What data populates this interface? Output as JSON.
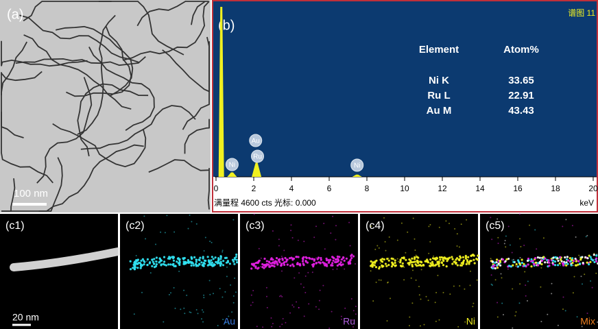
{
  "panel_a": {
    "label": "(a)",
    "scale_bar": "100 nm"
  },
  "panel_b": {
    "label": "(b)",
    "spectrum_title": "谱图 11",
    "table": {
      "header": [
        "Element",
        "Atom%"
      ],
      "rows": [
        [
          "Ni K",
          "33.65"
        ],
        [
          "Ru L",
          "22.91"
        ],
        [
          "Au M",
          "43.43"
        ]
      ]
    },
    "xticks": [
      0,
      2,
      4,
      6,
      8,
      10,
      12,
      14,
      16,
      18,
      20
    ],
    "x_unit": "keV",
    "footer": "满量程 4600 cts 光标: 0.000",
    "peaks": [
      {
        "energy": 0.28,
        "counts": 4600
      },
      {
        "energy": 0.85,
        "counts": 120
      },
      {
        "energy": 2.15,
        "counts": 380
      },
      {
        "energy": 7.48,
        "counts": 60
      }
    ],
    "peak_labels": [
      {
        "text": "Ni",
        "energy": 0.85
      },
      {
        "text": "Au",
        "energy": 2.1
      },
      {
        "text": "Ru",
        "energy": 2.2
      },
      {
        "text": "Ni",
        "energy": 7.48
      }
    ]
  },
  "panel_c": [
    {
      "label": "(c1)",
      "scale_bar": "20 nm"
    },
    {
      "label": "(c2)",
      "element": "Au",
      "label_color": "#3b78e0",
      "dot_color": "#30e0f0"
    },
    {
      "label": "(c3)",
      "element": "Ru",
      "label_color": "#b060e0",
      "dot_color": "#e020e0"
    },
    {
      "label": "(c4)",
      "element": "Ni",
      "label_color": "#f0f020",
      "dot_color": "#f0f020"
    },
    {
      "label": "(c5)",
      "element": "Mix",
      "label_color": "#f08020",
      "dot_color": "#f0f0f0"
    }
  ]
}
